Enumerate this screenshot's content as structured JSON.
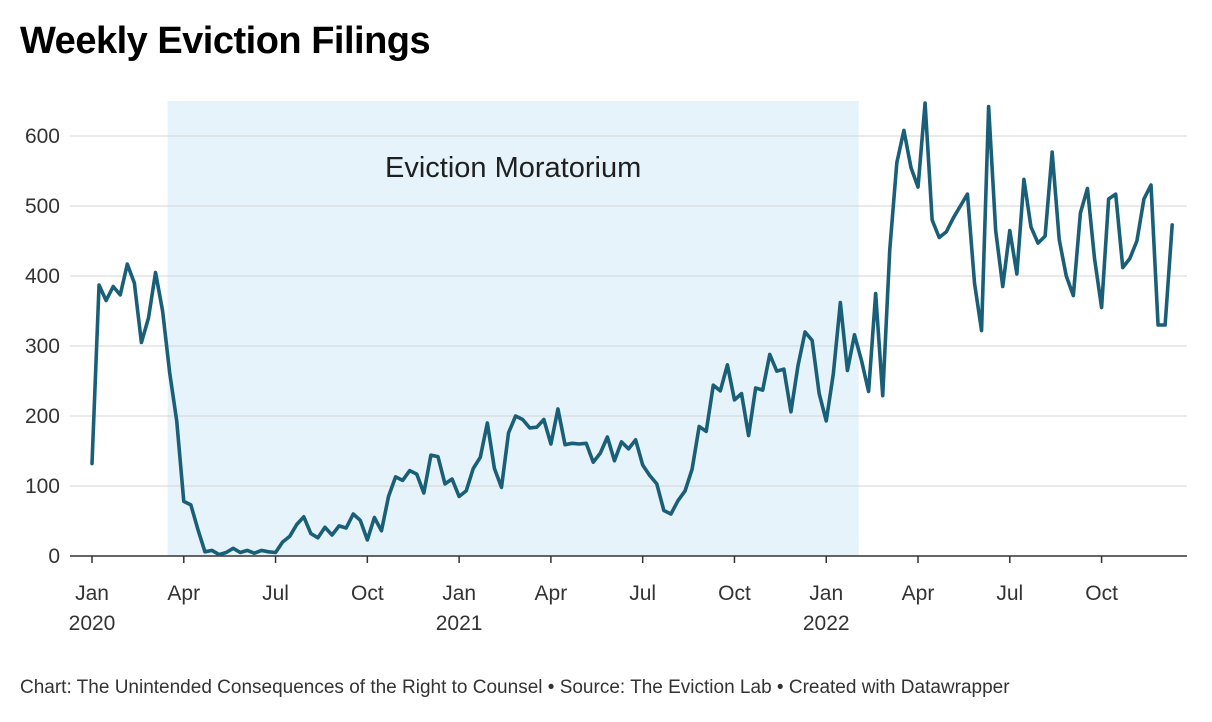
{
  "header": {
    "title": "Weekly Eviction Filings"
  },
  "footer": {
    "text": "Chart: The Unintended Consequences of the Right to Counsel • Source: The Eviction Lab • Created with Datawrapper"
  },
  "colors": {
    "line": "#1a5f78",
    "shade": "#e6f3fa",
    "grid": "#d4d4d4",
    "axis": "#333333",
    "text": "#333333"
  },
  "chart_data": {
    "type": "line",
    "title": "Weekly Eviction Filings",
    "xlabel": "",
    "ylabel": "",
    "ylim": [
      0,
      650
    ],
    "grid": true,
    "y_ticks": [
      0,
      100,
      200,
      300,
      400,
      500,
      600
    ],
    "x_ticks": [
      {
        "week": 0,
        "label": "Jan",
        "sublabel": "2020"
      },
      {
        "week": 13,
        "label": "Apr",
        "sublabel": ""
      },
      {
        "week": 26,
        "label": "Jul",
        "sublabel": ""
      },
      {
        "week": 39,
        "label": "Oct",
        "sublabel": ""
      },
      {
        "week": 52,
        "label": "Jan",
        "sublabel": "2021"
      },
      {
        "week": 65,
        "label": "Apr",
        "sublabel": ""
      },
      {
        "week": 78,
        "label": "Jul",
        "sublabel": ""
      },
      {
        "week": 91,
        "label": "Oct",
        "sublabel": ""
      },
      {
        "week": 104,
        "label": "Jan",
        "sublabel": "2022"
      },
      {
        "week": 117,
        "label": "Apr",
        "sublabel": ""
      },
      {
        "week": 130,
        "label": "Jul",
        "sublabel": ""
      },
      {
        "week": 143,
        "label": "Oct",
        "sublabel": ""
      }
    ],
    "x_range": [
      -2,
      155
    ],
    "annotation": {
      "label": "Eviction Moratorium",
      "start_week": 10.7,
      "end_week": 108.6
    },
    "series": [
      {
        "name": "Weekly Eviction Filings",
        "values": [
          132,
          387,
          365,
          385,
          373,
          417,
          390,
          305,
          340,
          405,
          350,
          262,
          193,
          78,
          73,
          38,
          6,
          8,
          2,
          5,
          11,
          5,
          8,
          4,
          8,
          6,
          5,
          20,
          28,
          45,
          56,
          32,
          26,
          41,
          30,
          43,
          40,
          60,
          51,
          23,
          55,
          36,
          85,
          113,
          108,
          122,
          117,
          90,
          144,
          142,
          103,
          110,
          85,
          93,
          125,
          141,
          190,
          125,
          98,
          176,
          200,
          195,
          183,
          184,
          195,
          160,
          210,
          159,
          161,
          160,
          161,
          134,
          147,
          170,
          136,
          163,
          153,
          166,
          130,
          115,
          103,
          65,
          60,
          79,
          93,
          124,
          185,
          178,
          244,
          236,
          273,
          223,
          232,
          172,
          240,
          237,
          288,
          264,
          267,
          206,
          272,
          320,
          308,
          232,
          193,
          260,
          362,
          265,
          316,
          279,
          235,
          375,
          229,
          438,
          562,
          608,
          555,
          527,
          647,
          480,
          455,
          463,
          483,
          500,
          517,
          390,
          322,
          642,
          465,
          385,
          465,
          403,
          538,
          470,
          447,
          457,
          577,
          452,
          400,
          372,
          490,
          525,
          425,
          355,
          510,
          517,
          412,
          425,
          450,
          510,
          530,
          330,
          330,
          473
        ]
      }
    ]
  }
}
